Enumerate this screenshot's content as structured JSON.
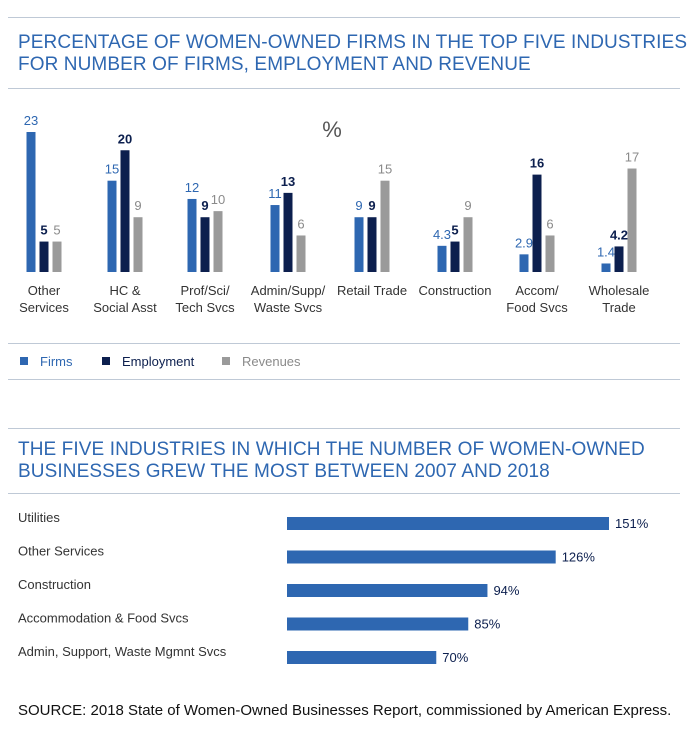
{
  "source": "SOURCE: 2018 State of Women-Owned Businesses Report, commissioned by American Express.",
  "colors": {
    "firms": "#2e67b1",
    "employment": "#0c1f4e",
    "revenues": "#9a9a9a",
    "accent": "#2e67b1"
  },
  "chart_data": [
    {
      "type": "bar",
      "title": "PERCENTAGE OF WOMEN-OWNED FIRMS IN THE TOP FIVE INDUSTRIES FOR NUMBER OF FIRMS, EMPLOYMENT AND REVENUE",
      "unit_label": "%",
      "categories": [
        [
          "Other",
          "Services"
        ],
        [
          "HC &",
          "Social Asst"
        ],
        [
          "Prof/Sci/",
          "Tech Svcs"
        ],
        [
          "Admin/Supp/",
          "Waste Svcs"
        ],
        [
          "Retail Trade"
        ],
        [
          "Construction"
        ],
        [
          "Accom/",
          "Food Svcs"
        ],
        [
          "Wholesale",
          "Trade"
        ]
      ],
      "series": [
        {
          "name": "Firms",
          "values": [
            23,
            15,
            12,
            11,
            9,
            4.3,
            2.9,
            1.4
          ],
          "labels": [
            "23",
            "15",
            "12",
            "11",
            "9",
            "4.3",
            "2.9",
            "1.4"
          ]
        },
        {
          "name": "Employment",
          "values": [
            5,
            20,
            9,
            13,
            9,
            5,
            16,
            4.2
          ],
          "labels": [
            "5",
            "20",
            "9",
            "13",
            "9",
            "5",
            "16",
            "4.2"
          ]
        },
        {
          "name": "Revenues",
          "values": [
            5,
            9,
            10,
            6,
            15,
            9,
            6,
            17
          ],
          "labels": [
            "5",
            "9",
            "10",
            "6",
            "15",
            "9",
            "6",
            "17"
          ]
        }
      ],
      "ylim": [
        0,
        23
      ],
      "legend": "bottom-left",
      "grid": false
    },
    {
      "type": "bar",
      "orientation": "horizontal",
      "title": "THE FIVE INDUSTRIES IN WHICH THE NUMBER OF WOMEN-OWNED BUSINESSES GREW THE MOST BETWEEN 2007 AND 2018",
      "categories": [
        "Utilities",
        "Other Services",
        "Construction",
        "Accommodation & Food Svcs",
        "Admin, Support, Waste Mgmnt Svcs"
      ],
      "values": [
        151,
        126,
        94,
        85,
        70
      ],
      "labels": [
        "151%",
        "126%",
        "94%",
        "85%",
        "70%"
      ],
      "xlim": [
        0,
        151
      ],
      "grid": false
    }
  ]
}
